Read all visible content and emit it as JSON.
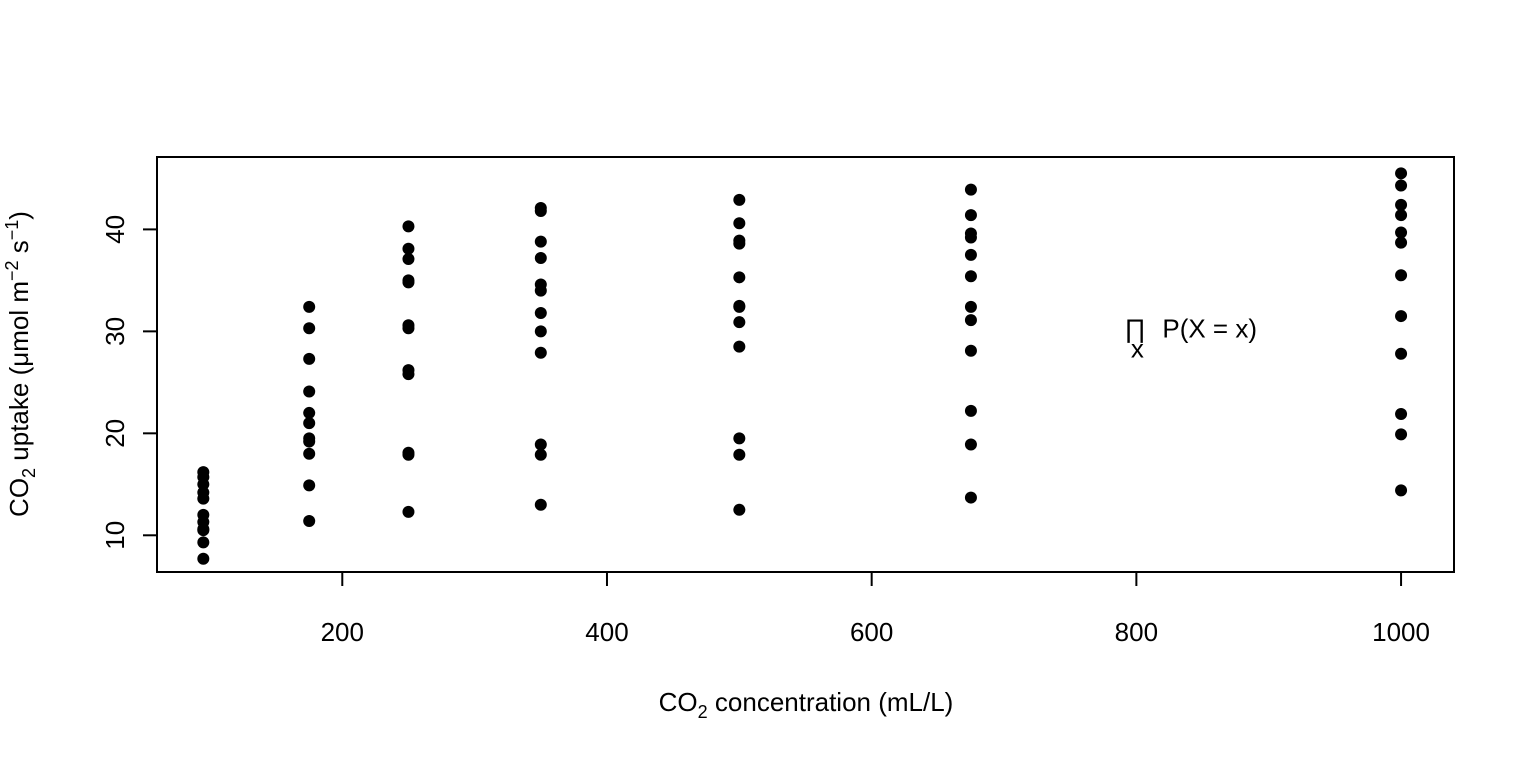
{
  "chart_data": {
    "type": "scatter",
    "xlabel": {
      "pre": "CO",
      "sub": "2",
      "post": " concentration (mL/L)"
    },
    "ylabel": {
      "pre": "CO",
      "sub": "2",
      "mid": " uptake (μmol m",
      "sup1": "−2",
      "mid2": " s",
      "sup2": "−1",
      "post": ")"
    },
    "xlim": [
      60,
      1040
    ],
    "ylim": [
      6.4,
      47.1
    ],
    "xticks": [
      200,
      400,
      600,
      800,
      1000
    ],
    "yticks": [
      10,
      20,
      30,
      40
    ],
    "xtick_labels": [
      "200",
      "400",
      "600",
      "800",
      "1000"
    ],
    "ytick_labels": [
      "10",
      "20",
      "30",
      "40"
    ],
    "grid": false,
    "annotation": {
      "x": 800,
      "y": 30.3,
      "prod": "∏",
      "sub": "x",
      "text": "P(X = x)"
    },
    "points": [
      {
        "x": 95,
        "values": [
          16.2,
          15.7,
          15.0,
          14.2,
          13.6,
          12.0,
          11.3,
          10.6,
          10.5,
          9.3,
          7.7
        ]
      },
      {
        "x": 175,
        "values": [
          32.4,
          30.3,
          27.3,
          24.1,
          22.0,
          21.0,
          19.5,
          19.2,
          18.0,
          14.9,
          11.4
        ]
      },
      {
        "x": 250,
        "values": [
          40.3,
          38.1,
          37.1,
          35.0,
          34.8,
          30.6,
          30.3,
          26.2,
          25.8,
          18.1,
          17.9,
          12.3
        ]
      },
      {
        "x": 350,
        "values": [
          42.1,
          41.8,
          38.8,
          37.2,
          34.6,
          34.0,
          31.8,
          30.0,
          27.9,
          18.9,
          17.9,
          13.0
        ]
      },
      {
        "x": 500,
        "values": [
          42.9,
          40.6,
          38.9,
          38.6,
          35.3,
          32.5,
          32.4,
          30.9,
          28.5,
          19.5,
          17.9,
          12.5
        ]
      },
      {
        "x": 675,
        "values": [
          43.9,
          41.4,
          39.6,
          39.2,
          37.5,
          35.4,
          32.4,
          31.1,
          28.1,
          22.2,
          18.9,
          13.7
        ]
      },
      {
        "x": 1000,
        "values": [
          45.5,
          44.3,
          42.4,
          41.4,
          39.7,
          38.7,
          35.5,
          31.5,
          27.8,
          21.9,
          19.9,
          14.4
        ]
      }
    ]
  }
}
